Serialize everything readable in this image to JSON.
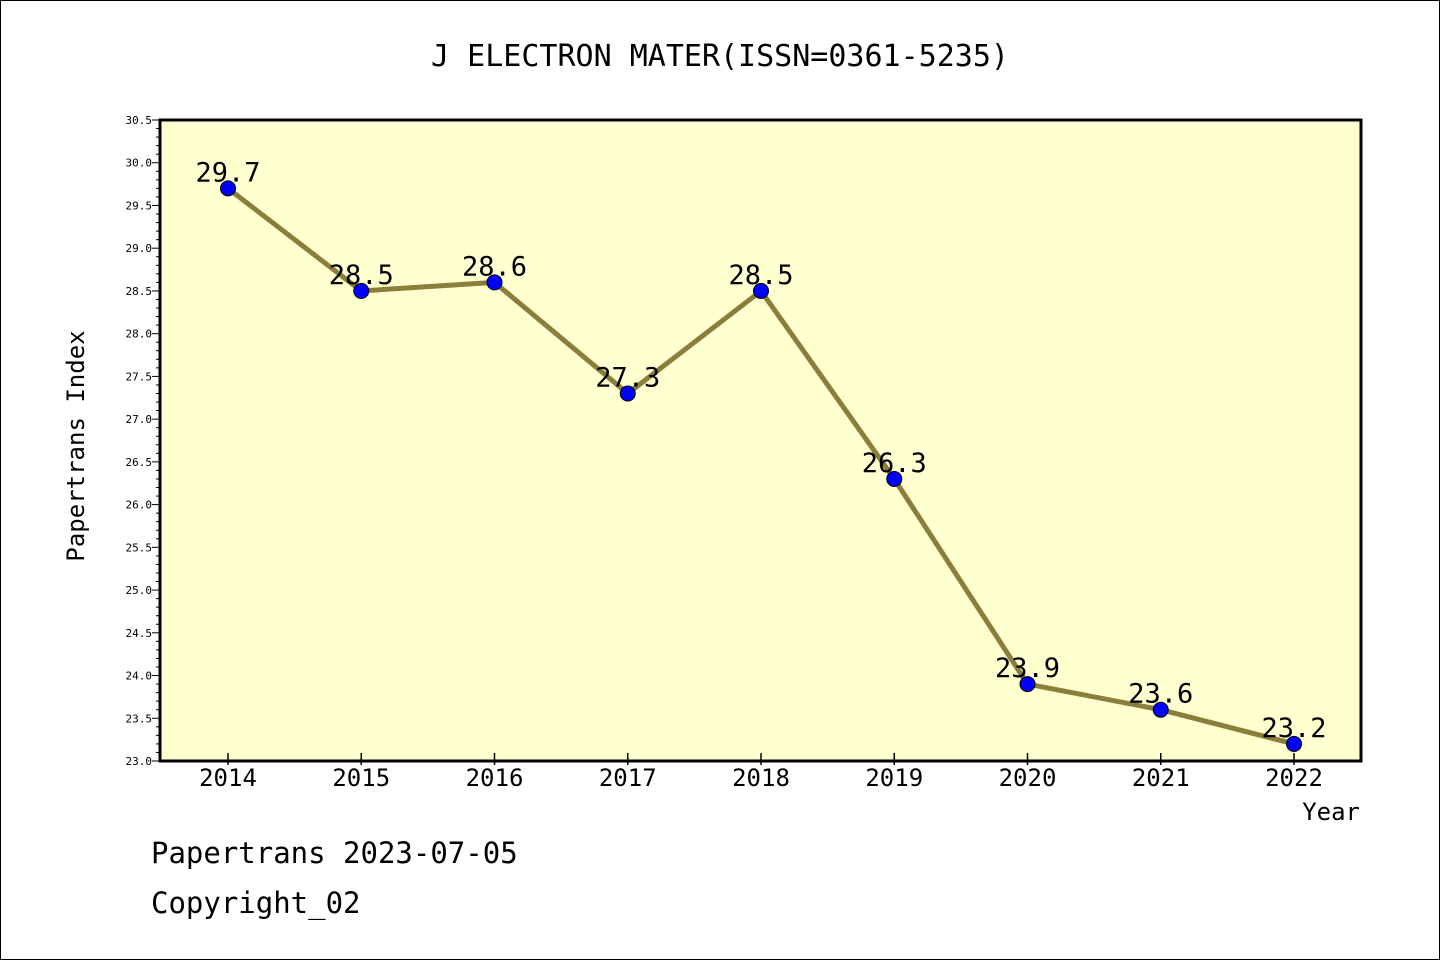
{
  "chart_data": {
    "type": "line",
    "title": "J ELECTRON MATER(ISSN=0361-5235)",
    "xlabel": "Year",
    "ylabel": "Papertrans Index",
    "categories": [
      "2014",
      "2015",
      "2016",
      "2017",
      "2018",
      "2019",
      "2020",
      "2021",
      "2022"
    ],
    "series": [
      {
        "values": [
          29.7,
          28.5,
          28.6,
          27.3,
          28.5,
          26.3,
          23.9,
          23.6,
          23.2
        ]
      }
    ],
    "data_labels": [
      "29.7",
      "28.5",
      "28.6",
      "27.3",
      "28.5",
      "26.3",
      "23.9",
      "23.6",
      "23.2"
    ],
    "ylim": [
      23.0,
      30.5
    ],
    "yticks": [
      "23.0",
      "23.5",
      "24.0",
      "24.5",
      "25.0",
      "25.5",
      "26.0",
      "26.5",
      "27.0",
      "27.5",
      "28.0",
      "28.5",
      "29.0",
      "29.5",
      "30.0",
      "30.5"
    ],
    "grid": false,
    "legend": "none",
    "colors": {
      "plot_background": "#ffffd0",
      "line": "#8b7d3a",
      "marker": "#0000ff"
    }
  },
  "footer": {
    "line1": "Papertrans 2023-07-05",
    "line2": "Copyright_02"
  }
}
